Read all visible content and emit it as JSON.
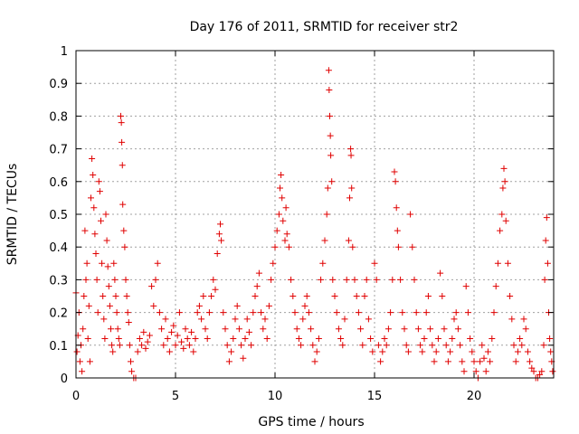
{
  "chart_data": {
    "type": "scatter",
    "title": "Day 176 of 2011, SRMTID for receiver str2",
    "xlabel": "GPS time / hours",
    "ylabel": "SRMTID / TECUs",
    "xlim": [
      0,
      24
    ],
    "ylim": [
      0,
      1
    ],
    "xticks": [
      "0",
      "5",
      "10",
      "15",
      "20"
    ],
    "xtick_values": [
      0,
      5,
      10,
      15,
      20
    ],
    "yticks": [
      "0",
      "0.1",
      "0.2",
      "0.3",
      "0.4",
      "0.5",
      "0.6",
      "0.7",
      "0.8",
      "0.9",
      "1"
    ],
    "ytick_values": [
      0,
      0.1,
      0.2,
      0.3,
      0.4,
      0.5,
      0.6,
      0.7,
      0.8,
      0.9,
      1
    ],
    "grid": true,
    "marker": "plus",
    "color": "#e00000",
    "series": [
      {
        "values": [
          [
            0.0,
            0.26
          ],
          [
            0.05,
            0.08
          ],
          [
            0.1,
            0.13
          ],
          [
            0.15,
            0.2
          ],
          [
            0.2,
            0.05
          ],
          [
            0.25,
            0.1
          ],
          [
            0.3,
            0.02
          ],
          [
            0.35,
            0.15
          ],
          [
            0.4,
            0.25
          ],
          [
            0.45,
            0.45
          ],
          [
            0.5,
            0.3
          ],
          [
            0.55,
            0.35
          ],
          [
            0.6,
            0.12
          ],
          [
            0.65,
            0.22
          ],
          [
            0.7,
            0.05
          ],
          [
            0.75,
            0.55
          ],
          [
            0.8,
            0.67
          ],
          [
            0.85,
            0.62
          ],
          [
            0.9,
            0.52
          ],
          [
            0.95,
            0.44
          ],
          [
            1.0,
            0.38
          ],
          [
            1.05,
            0.3
          ],
          [
            1.1,
            0.2
          ],
          [
            1.15,
            0.6
          ],
          [
            1.2,
            0.57
          ],
          [
            1.25,
            0.48
          ],
          [
            1.3,
            0.35
          ],
          [
            1.35,
            0.25
          ],
          [
            1.4,
            0.18
          ],
          [
            1.45,
            0.12
          ],
          [
            1.5,
            0.5
          ],
          [
            1.55,
            0.42
          ],
          [
            1.6,
            0.34
          ],
          [
            1.65,
            0.28
          ],
          [
            1.7,
            0.22
          ],
          [
            1.75,
            0.15
          ],
          [
            1.8,
            0.1
          ],
          [
            1.85,
            0.08
          ],
          [
            1.9,
            0.35
          ],
          [
            1.95,
            0.3
          ],
          [
            2.0,
            0.25
          ],
          [
            2.05,
            0.2
          ],
          [
            2.1,
            0.15
          ],
          [
            2.15,
            0.12
          ],
          [
            2.2,
            0.1
          ],
          [
            2.25,
            0.8
          ],
          [
            2.28,
            0.78
          ],
          [
            2.3,
            0.72
          ],
          [
            2.33,
            0.65
          ],
          [
            2.35,
            0.53
          ],
          [
            2.4,
            0.45
          ],
          [
            2.45,
            0.4
          ],
          [
            2.5,
            0.3
          ],
          [
            2.55,
            0.25
          ],
          [
            2.6,
            0.2
          ],
          [
            2.65,
            0.17
          ],
          [
            2.7,
            0.1
          ],
          [
            2.75,
            0.05
          ],
          [
            2.8,
            0.02
          ],
          [
            2.9,
            0.0
          ],
          [
            3.0,
            0.0
          ],
          [
            3.1,
            0.08
          ],
          [
            3.2,
            0.12
          ],
          [
            3.3,
            0.1
          ],
          [
            3.4,
            0.14
          ],
          [
            3.5,
            0.09
          ],
          [
            3.6,
            0.11
          ],
          [
            3.7,
            0.13
          ],
          [
            3.8,
            0.28
          ],
          [
            3.9,
            0.22
          ],
          [
            4.0,
            0.3
          ],
          [
            4.1,
            0.35
          ],
          [
            4.2,
            0.2
          ],
          [
            4.3,
            0.15
          ],
          [
            4.4,
            0.1
          ],
          [
            4.5,
            0.18
          ],
          [
            4.6,
            0.12
          ],
          [
            4.7,
            0.08
          ],
          [
            4.8,
            0.14
          ],
          [
            4.9,
            0.16
          ],
          [
            5.0,
            0.1
          ],
          [
            5.1,
            0.13
          ],
          [
            5.2,
            0.2
          ],
          [
            5.3,
            0.11
          ],
          [
            5.4,
            0.09
          ],
          [
            5.5,
            0.15
          ],
          [
            5.6,
            0.12
          ],
          [
            5.7,
            0.1
          ],
          [
            5.8,
            0.14
          ],
          [
            5.9,
            0.08
          ],
          [
            6.0,
            0.12
          ],
          [
            6.1,
            0.2
          ],
          [
            6.2,
            0.22
          ],
          [
            6.3,
            0.18
          ],
          [
            6.4,
            0.25
          ],
          [
            6.5,
            0.15
          ],
          [
            6.6,
            0.12
          ],
          [
            6.7,
            0.2
          ],
          [
            6.8,
            0.25
          ],
          [
            6.9,
            0.3
          ],
          [
            7.0,
            0.27
          ],
          [
            7.1,
            0.38
          ],
          [
            7.2,
            0.44
          ],
          [
            7.25,
            0.47
          ],
          [
            7.3,
            0.42
          ],
          [
            7.4,
            0.2
          ],
          [
            7.5,
            0.15
          ],
          [
            7.6,
            0.1
          ],
          [
            7.7,
            0.05
          ],
          [
            7.8,
            0.08
          ],
          [
            7.9,
            0.12
          ],
          [
            8.0,
            0.18
          ],
          [
            8.1,
            0.22
          ],
          [
            8.2,
            0.15
          ],
          [
            8.3,
            0.1
          ],
          [
            8.4,
            0.06
          ],
          [
            8.5,
            0.12
          ],
          [
            8.6,
            0.18
          ],
          [
            8.7,
            0.14
          ],
          [
            8.8,
            0.1
          ],
          [
            8.9,
            0.2
          ],
          [
            9.0,
            0.25
          ],
          [
            9.1,
            0.28
          ],
          [
            9.2,
            0.32
          ],
          [
            9.3,
            0.2
          ],
          [
            9.4,
            0.15
          ],
          [
            9.5,
            0.18
          ],
          [
            9.6,
            0.12
          ],
          [
            9.7,
            0.22
          ],
          [
            9.8,
            0.3
          ],
          [
            9.9,
            0.35
          ],
          [
            10.0,
            0.4
          ],
          [
            10.1,
            0.45
          ],
          [
            10.2,
            0.5
          ],
          [
            10.25,
            0.58
          ],
          [
            10.3,
            0.62
          ],
          [
            10.35,
            0.55
          ],
          [
            10.4,
            0.48
          ],
          [
            10.5,
            0.42
          ],
          [
            10.55,
            0.52
          ],
          [
            10.6,
            0.44
          ],
          [
            10.7,
            0.4
          ],
          [
            10.8,
            0.3
          ],
          [
            10.9,
            0.25
          ],
          [
            11.0,
            0.2
          ],
          [
            11.1,
            0.15
          ],
          [
            11.2,
            0.12
          ],
          [
            11.3,
            0.1
          ],
          [
            11.4,
            0.18
          ],
          [
            11.5,
            0.22
          ],
          [
            11.6,
            0.25
          ],
          [
            11.7,
            0.2
          ],
          [
            11.8,
            0.15
          ],
          [
            11.9,
            0.1
          ],
          [
            12.0,
            0.05
          ],
          [
            12.1,
            0.08
          ],
          [
            12.2,
            0.12
          ],
          [
            12.3,
            0.3
          ],
          [
            12.4,
            0.35
          ],
          [
            12.5,
            0.42
          ],
          [
            12.6,
            0.5
          ],
          [
            12.65,
            0.58
          ],
          [
            12.7,
            0.94
          ],
          [
            12.72,
            0.88
          ],
          [
            12.75,
            0.8
          ],
          [
            12.78,
            0.74
          ],
          [
            12.8,
            0.68
          ],
          [
            12.85,
            0.6
          ],
          [
            12.9,
            0.3
          ],
          [
            13.0,
            0.25
          ],
          [
            13.1,
            0.2
          ],
          [
            13.2,
            0.15
          ],
          [
            13.3,
            0.12
          ],
          [
            13.4,
            0.1
          ],
          [
            13.5,
            0.18
          ],
          [
            13.6,
            0.3
          ],
          [
            13.7,
            0.42
          ],
          [
            13.75,
            0.55
          ],
          [
            13.8,
            0.7
          ],
          [
            13.82,
            0.68
          ],
          [
            13.85,
            0.58
          ],
          [
            13.9,
            0.4
          ],
          [
            14.0,
            0.3
          ],
          [
            14.1,
            0.25
          ],
          [
            14.2,
            0.2
          ],
          [
            14.3,
            0.15
          ],
          [
            14.4,
            0.1
          ],
          [
            14.5,
            0.25
          ],
          [
            14.6,
            0.3
          ],
          [
            14.7,
            0.18
          ],
          [
            14.8,
            0.12
          ],
          [
            14.9,
            0.08
          ],
          [
            15.0,
            0.35
          ],
          [
            15.1,
            0.3
          ],
          [
            15.2,
            0.1
          ],
          [
            15.3,
            0.05
          ],
          [
            15.4,
            0.08
          ],
          [
            15.5,
            0.12
          ],
          [
            15.6,
            0.1
          ],
          [
            15.7,
            0.15
          ],
          [
            15.8,
            0.2
          ],
          [
            15.9,
            0.3
          ],
          [
            16.0,
            0.63
          ],
          [
            16.05,
            0.6
          ],
          [
            16.1,
            0.52
          ],
          [
            16.15,
            0.45
          ],
          [
            16.2,
            0.4
          ],
          [
            16.3,
            0.3
          ],
          [
            16.4,
            0.2
          ],
          [
            16.5,
            0.15
          ],
          [
            16.6,
            0.1
          ],
          [
            16.7,
            0.08
          ],
          [
            16.8,
            0.5
          ],
          [
            16.9,
            0.4
          ],
          [
            17.0,
            0.3
          ],
          [
            17.1,
            0.2
          ],
          [
            17.2,
            0.15
          ],
          [
            17.3,
            0.1
          ],
          [
            17.4,
            0.08
          ],
          [
            17.5,
            0.12
          ],
          [
            17.6,
            0.2
          ],
          [
            17.7,
            0.25
          ],
          [
            17.8,
            0.15
          ],
          [
            17.9,
            0.1
          ],
          [
            18.0,
            0.05
          ],
          [
            18.1,
            0.08
          ],
          [
            18.2,
            0.12
          ],
          [
            18.3,
            0.32
          ],
          [
            18.4,
            0.25
          ],
          [
            18.5,
            0.15
          ],
          [
            18.6,
            0.1
          ],
          [
            18.7,
            0.05
          ],
          [
            18.8,
            0.08
          ],
          [
            18.9,
            0.12
          ],
          [
            19.0,
            0.18
          ],
          [
            19.1,
            0.2
          ],
          [
            19.2,
            0.15
          ],
          [
            19.3,
            0.1
          ],
          [
            19.4,
            0.05
          ],
          [
            19.5,
            0.02
          ],
          [
            19.6,
            0.28
          ],
          [
            19.7,
            0.2
          ],
          [
            19.8,
            0.12
          ],
          [
            19.9,
            0.08
          ],
          [
            20.0,
            0.05
          ],
          [
            20.1,
            0.02
          ],
          [
            20.2,
            0.0
          ],
          [
            20.3,
            0.05
          ],
          [
            20.4,
            0.1
          ],
          [
            20.5,
            0.06
          ],
          [
            20.6,
            0.02
          ],
          [
            20.7,
            0.08
          ],
          [
            20.8,
            0.05
          ],
          [
            20.9,
            0.12
          ],
          [
            21.0,
            0.2
          ],
          [
            21.1,
            0.28
          ],
          [
            21.2,
            0.35
          ],
          [
            21.3,
            0.45
          ],
          [
            21.4,
            0.5
          ],
          [
            21.45,
            0.58
          ],
          [
            21.5,
            0.64
          ],
          [
            21.55,
            0.6
          ],
          [
            21.6,
            0.48
          ],
          [
            21.7,
            0.35
          ],
          [
            21.8,
            0.25
          ],
          [
            21.9,
            0.18
          ],
          [
            22.0,
            0.1
          ],
          [
            22.1,
            0.05
          ],
          [
            22.2,
            0.08
          ],
          [
            22.3,
            0.12
          ],
          [
            22.4,
            0.1
          ],
          [
            22.5,
            0.18
          ],
          [
            22.6,
            0.15
          ],
          [
            22.7,
            0.08
          ],
          [
            22.8,
            0.05
          ],
          [
            22.9,
            0.03
          ],
          [
            23.0,
            0.02
          ],
          [
            23.1,
            0.0
          ],
          [
            23.2,
            0.0
          ],
          [
            23.3,
            0.01
          ],
          [
            23.4,
            0.02
          ],
          [
            23.5,
            0.1
          ],
          [
            23.55,
            0.3
          ],
          [
            23.6,
            0.42
          ],
          [
            23.65,
            0.49
          ],
          [
            23.7,
            0.35
          ],
          [
            23.75,
            0.2
          ],
          [
            23.8,
            0.12
          ],
          [
            23.85,
            0.08
          ],
          [
            23.9,
            0.05
          ],
          [
            23.95,
            0.02
          ]
        ]
      }
    ]
  }
}
